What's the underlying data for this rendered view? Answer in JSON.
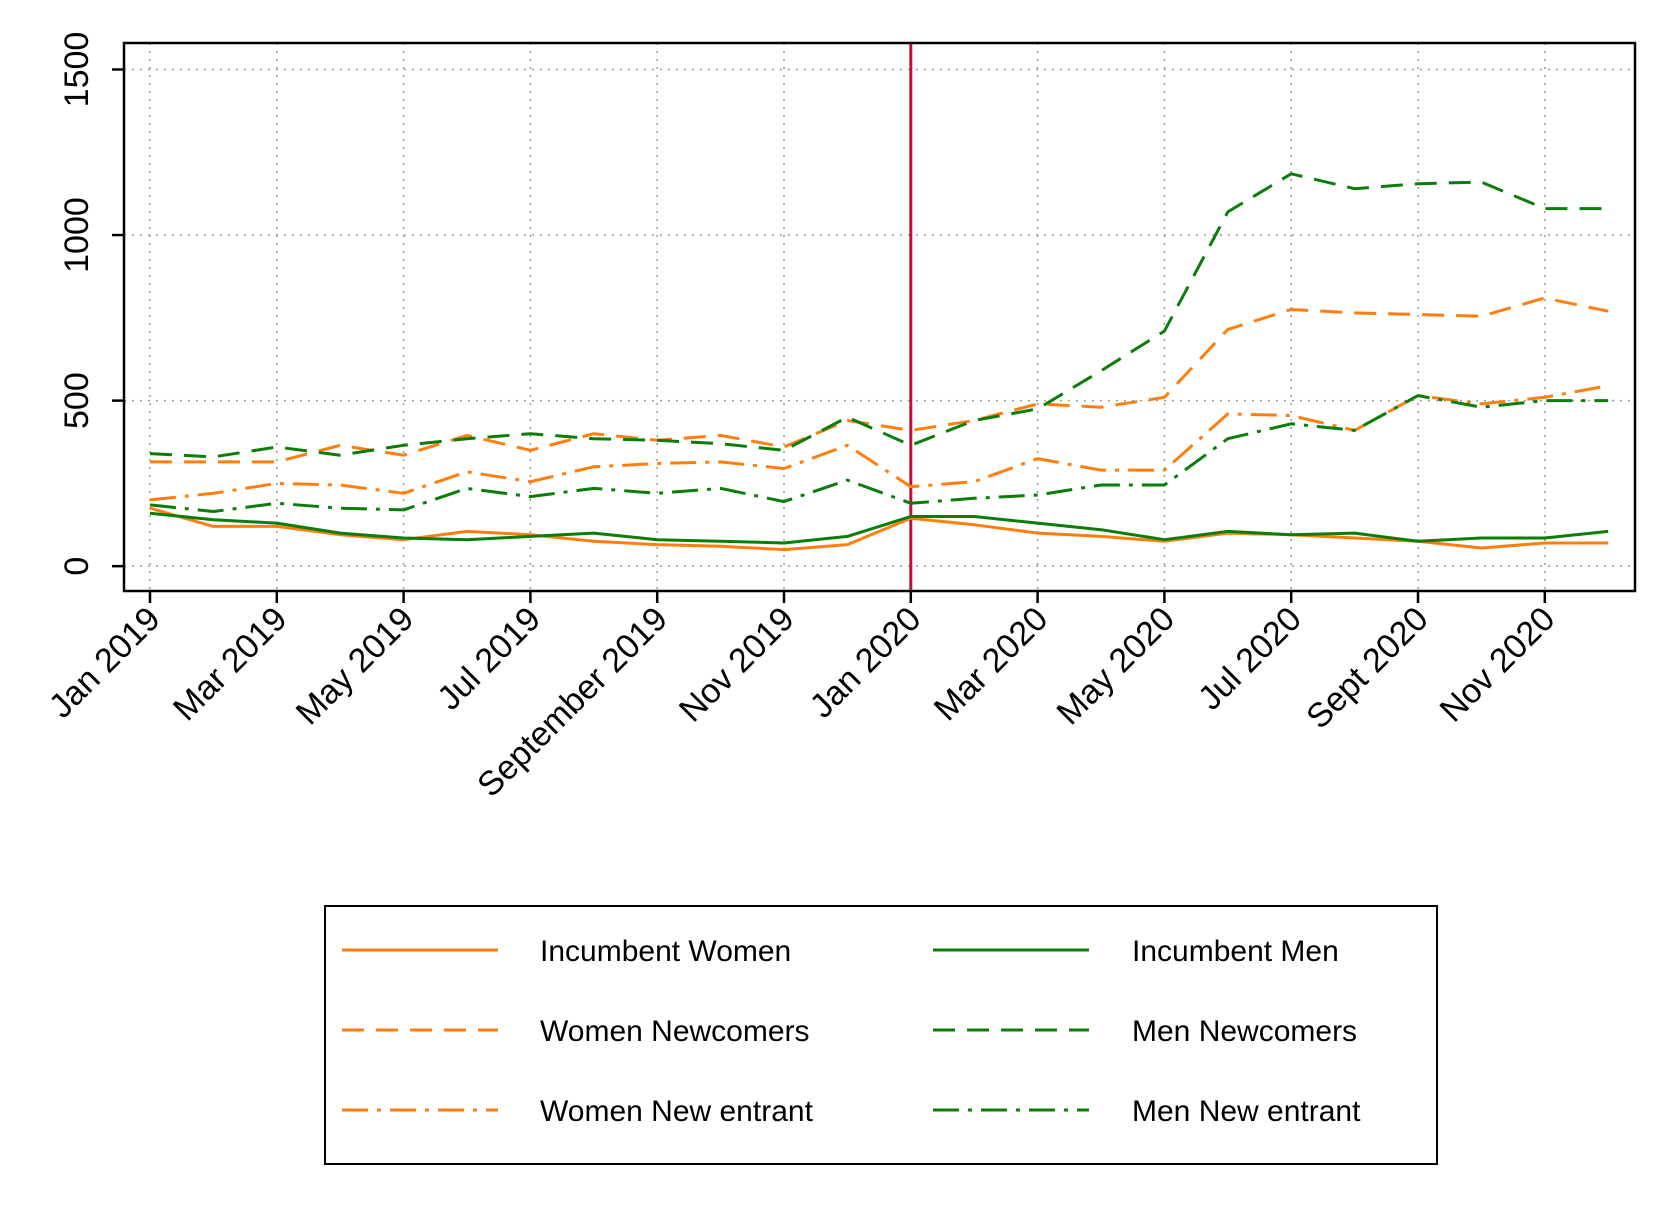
{
  "chart_data": {
    "type": "line",
    "title": "",
    "xlabel": "",
    "ylabel": "",
    "ylim": [
      -75,
      1580
    ],
    "yticks": [
      0,
      500,
      1000,
      1500
    ],
    "y_tick_labels": [
      "0",
      "500",
      "1000",
      "1500"
    ],
    "x_months": [
      "Jan 2019",
      "Feb 2019",
      "Mar 2019",
      "Apr 2019",
      "May 2019",
      "Jun 2019",
      "Jul 2019",
      "Aug 2019",
      "Sep 2019",
      "Oct 2019",
      "Nov 2019",
      "Dec 2019",
      "Jan 2020",
      "Feb 2020",
      "Mar 2020",
      "Apr 2020",
      "May 2020",
      "Jun 2020",
      "Jul 2020",
      "Aug 2020",
      "Sep 2020",
      "Oct 2020",
      "Nov 2020",
      "Dec 2020"
    ],
    "x_tick_index": [
      0,
      2,
      4,
      6,
      8,
      10,
      12,
      14,
      16,
      18,
      20,
      22
    ],
    "x_tick_labels": [
      "Jan 2019",
      "Mar 2019",
      "May 2019",
      "Jul 2019",
      "September 2019",
      "Nov 2019",
      "Jan 2020",
      "Mar 2020",
      "May 2020",
      "Jul 2020",
      "Sept 2020",
      "Nov 2020"
    ],
    "reference_line": {
      "x_index": 12,
      "label": "Jan 2020",
      "color": "#c0103c"
    },
    "grid": true,
    "legend_position": "bottom",
    "series": [
      {
        "name": "Incumbent Women",
        "color": "#ff7f0e",
        "style": "solid",
        "values": [
          175,
          120,
          120,
          95,
          80,
          105,
          95,
          75,
          65,
          60,
          50,
          65,
          145,
          125,
          100,
          90,
          75,
          100,
          95,
          85,
          75,
          55,
          70,
          70
        ]
      },
      {
        "name": "Incumbent Men",
        "color": "#0a7d0a",
        "style": "solid",
        "values": [
          160,
          140,
          130,
          100,
          85,
          80,
          90,
          100,
          80,
          75,
          70,
          90,
          150,
          150,
          130,
          110,
          80,
          105,
          95,
          100,
          75,
          85,
          85,
          105
        ]
      },
      {
        "name": "Women Newcomers",
        "color": "#ff7f0e",
        "style": "dashed",
        "values": [
          315,
          315,
          315,
          365,
          335,
          395,
          350,
          400,
          380,
          395,
          360,
          440,
          410,
          440,
          490,
          480,
          510,
          715,
          775,
          765,
          760,
          755,
          810,
          770
        ]
      },
      {
        "name": "Men Newcomers",
        "color": "#0a7d0a",
        "style": "dashed",
        "values": [
          340,
          330,
          360,
          335,
          365,
          385,
          400,
          385,
          380,
          370,
          350,
          450,
          365,
          440,
          475,
          590,
          710,
          1070,
          1185,
          1140,
          1155,
          1160,
          1080,
          1080
        ]
      },
      {
        "name": "Women New entrant",
        "color": "#ff7f0e",
        "style": "dashdot",
        "values": [
          200,
          220,
          250,
          245,
          220,
          285,
          255,
          300,
          310,
          315,
          295,
          365,
          240,
          255,
          325,
          290,
          290,
          460,
          455,
          410,
          515,
          490,
          510,
          545
        ]
      },
      {
        "name": "Men New entrant",
        "color": "#0a7d0a",
        "style": "dashdot",
        "values": [
          185,
          165,
          190,
          175,
          170,
          235,
          210,
          235,
          220,
          235,
          195,
          260,
          190,
          205,
          215,
          245,
          245,
          385,
          430,
          410,
          515,
          480,
          500,
          500
        ]
      }
    ],
    "legend_order": [
      "Incumbent Women",
      "Incumbent Men",
      "Women Newcomers",
      "Men Newcomers",
      "Women New entrant",
      "Men New entrant"
    ]
  }
}
